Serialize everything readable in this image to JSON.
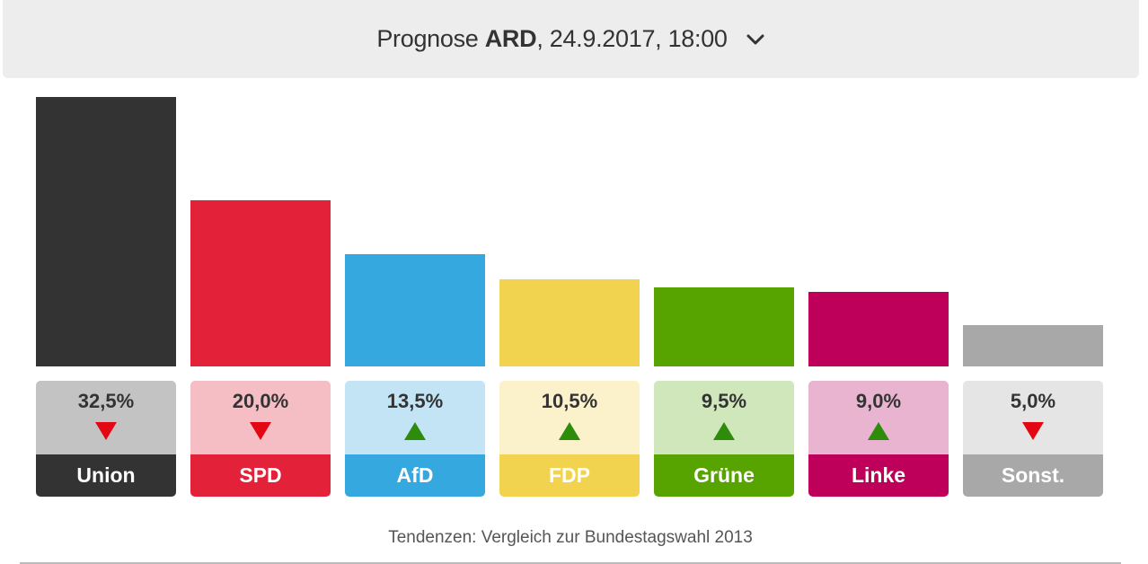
{
  "header": {
    "prefix": "Prognose",
    "institute": "ARD",
    "suffix": ", 24.9.2017, 18:00",
    "dropdown_icon": "chevron-down-icon"
  },
  "chart_data": {
    "type": "bar",
    "categories": [
      "Union",
      "SPD",
      "AfD",
      "FDP",
      "Grüne",
      "Linke",
      "Sonst."
    ],
    "values": [
      32.5,
      20.0,
      13.5,
      10.5,
      9.5,
      9.0,
      5.0
    ],
    "value_labels": [
      "32,5%",
      "20,0%",
      "13,5%",
      "10,5%",
      "9,5%",
      "9,0%",
      "5,0%"
    ],
    "trends": [
      "down",
      "down",
      "up",
      "up",
      "up",
      "up",
      "down"
    ],
    "colors": [
      "#333333",
      "#e3223a",
      "#36a8e0",
      "#f2d34f",
      "#57a400",
      "#be005b",
      "#a8a8a8"
    ],
    "light_colors": [
      "#c3c3c3",
      "#f5bec5",
      "#c3e4f5",
      "#fbf1cb",
      "#d0e6bb",
      "#e9b4d0",
      "#e5e5e5"
    ],
    "trend_colors": {
      "up": "#2d8c0a",
      "down": "#e30613"
    },
    "ylim": [
      0,
      32.5
    ]
  },
  "footnote": "Tendenzen: Vergleich zur Bundestagswahl 2013"
}
